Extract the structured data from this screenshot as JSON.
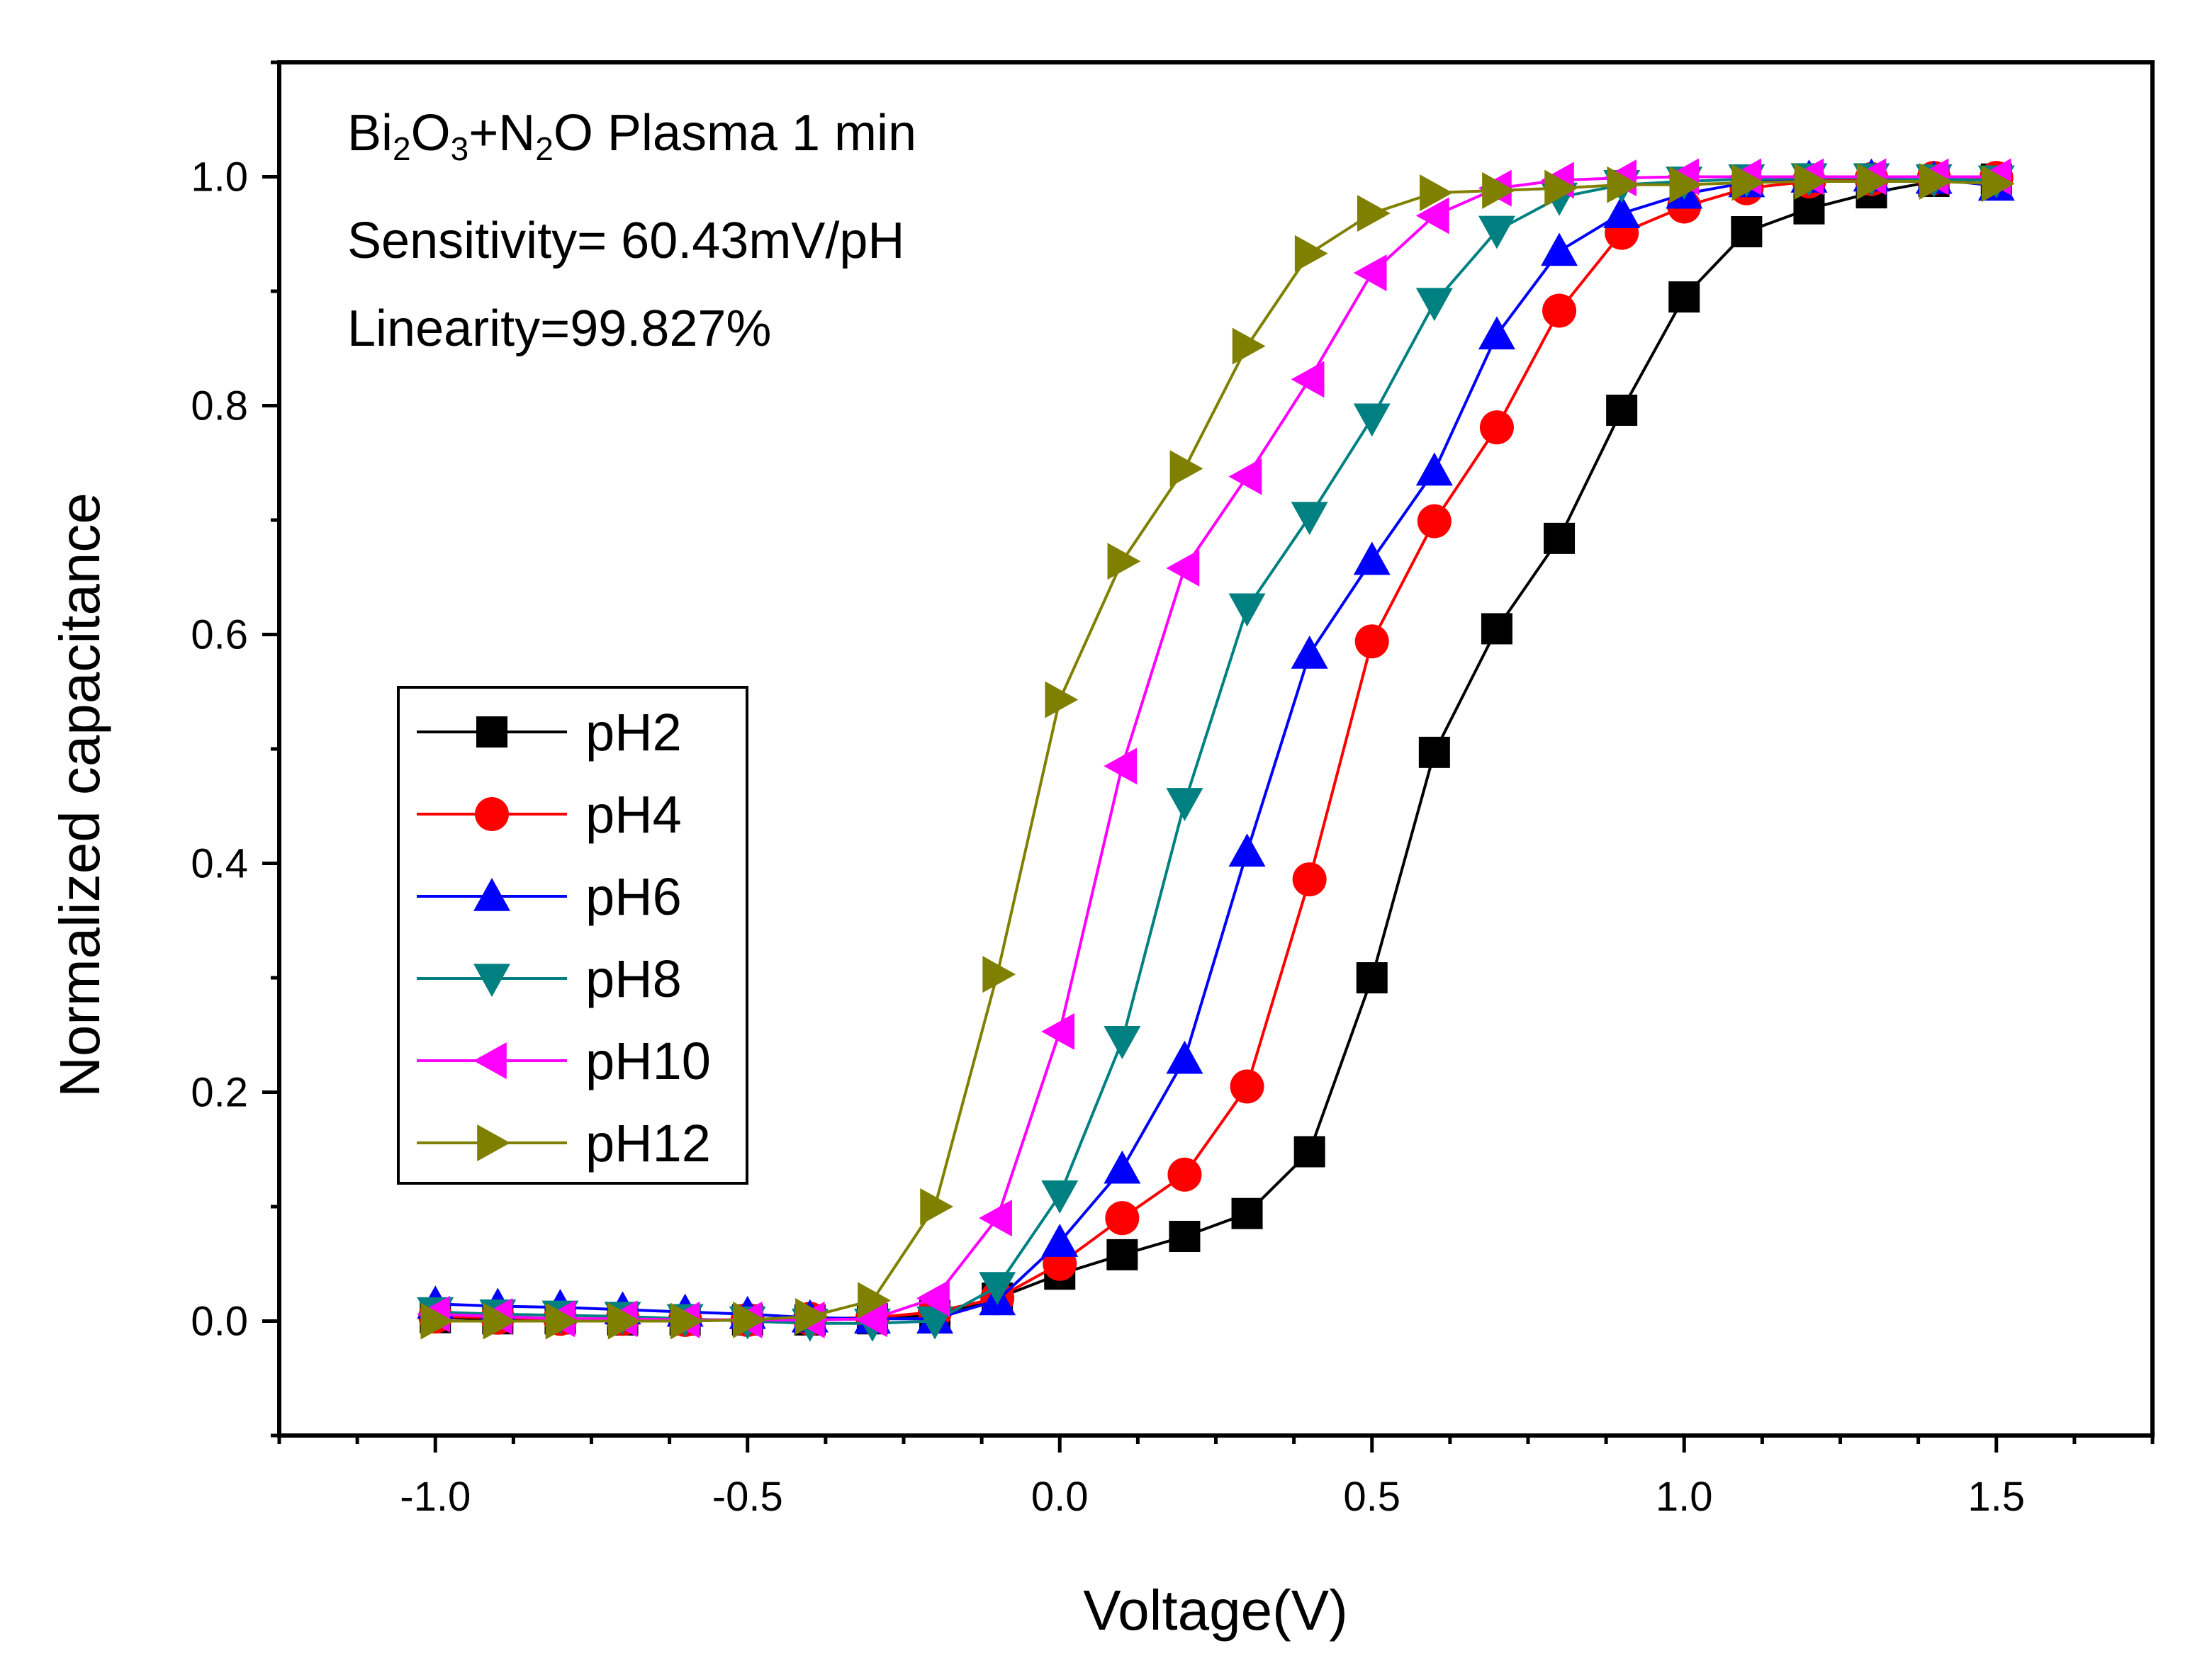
{
  "chart_data": {
    "type": "line",
    "title": "",
    "xlabel": "Voltage(V)",
    "ylabel": "Normalized capacitance",
    "xlim": [
      -1.25,
      1.75
    ],
    "ylim": [
      -0.1,
      1.1
    ],
    "xticks": [
      -1.0,
      -0.5,
      0.0,
      0.5,
      1.0,
      1.5
    ],
    "xtick_labels": [
      "-1.0",
      "-0.5",
      "0.0",
      "0.5",
      "1.0",
      "1.5"
    ],
    "yticks": [
      0.0,
      0.2,
      0.4,
      0.6,
      0.8,
      1.0
    ],
    "ytick_labels": [
      "0.0",
      "0.2",
      "0.4",
      "0.6",
      "0.8",
      "1.0"
    ],
    "grid": false,
    "legend_position": "left-middle",
    "annotation": {
      "line1_parts": [
        "Bi",
        "2",
        "O",
        "3",
        "+N",
        "2",
        "O Plasma 1 min"
      ],
      "line2": "Sensitivity= 60.43mV/pH",
      "line3": "Linearity=99.827%"
    },
    "x": [
      -1.0,
      -0.9,
      -0.8,
      -0.7,
      -0.6,
      -0.5,
      -0.4,
      -0.3,
      -0.2,
      -0.1,
      0.0,
      0.1,
      0.2,
      0.3,
      0.4,
      0.5,
      0.6,
      0.7,
      0.8,
      0.9,
      1.0,
      1.1,
      1.2,
      1.3,
      1.4,
      1.5
    ],
    "series": [
      {
        "name": "pH2",
        "color": "#000000",
        "marker": "square",
        "values": [
          0.003,
          0.002,
          0.002,
          0.001,
          0.001,
          0.001,
          0.001,
          0.002,
          0.005,
          0.02,
          0.041,
          0.058,
          0.074,
          0.094,
          0.148,
          0.3,
          0.497,
          0.605,
          0.684,
          0.796,
          0.895,
          0.952,
          0.972,
          0.986,
          0.996,
          0.998
        ]
      },
      {
        "name": "pH4",
        "color": "#ff0000",
        "marker": "circle",
        "values": [
          0.004,
          0.003,
          0.002,
          0.002,
          0.001,
          0.001,
          0.002,
          0.003,
          0.008,
          0.02,
          0.05,
          0.09,
          0.128,
          0.205,
          0.386,
          0.594,
          0.699,
          0.781,
          0.883,
          0.951,
          0.974,
          0.99,
          0.996,
          0.998,
          0.999,
          0.999
        ]
      },
      {
        "name": "pH6",
        "color": "#0000ff",
        "marker": "triangle-up",
        "values": [
          0.015,
          0.013,
          0.012,
          0.01,
          0.008,
          0.006,
          0.003,
          0.002,
          0.002,
          0.018,
          0.069,
          0.133,
          0.229,
          0.41,
          0.583,
          0.665,
          0.743,
          0.862,
          0.935,
          0.968,
          0.985,
          0.995,
          0.999,
          1.0,
          0.998,
          0.992
        ]
      },
      {
        "name": "pH8",
        "color": "#008080",
        "marker": "triangle-down",
        "values": [
          0.008,
          0.006,
          0.005,
          0.004,
          0.002,
          0.0,
          -0.002,
          -0.002,
          0.0,
          0.03,
          0.11,
          0.245,
          0.453,
          0.623,
          0.703,
          0.789,
          0.89,
          0.953,
          0.982,
          0.993,
          0.996,
          0.998,
          0.999,
          0.999,
          0.998,
          0.997
        ]
      },
      {
        "name": "pH10",
        "color": "#ff00ff",
        "marker": "triangle-left",
        "values": [
          0.006,
          0.004,
          0.002,
          0.002,
          0.001,
          0.001,
          0.001,
          0.002,
          0.02,
          0.09,
          0.253,
          0.485,
          0.658,
          0.738,
          0.823,
          0.916,
          0.966,
          0.99,
          0.997,
          0.999,
          1.0,
          1.0,
          1.0,
          1.0,
          1.0,
          1.0
        ]
      },
      {
        "name": "pH12",
        "color": "#808000",
        "marker": "triangle-right",
        "values": [
          0.0,
          0.0,
          0.0,
          0.0,
          0.0,
          0.001,
          0.004,
          0.018,
          0.1,
          0.303,
          0.543,
          0.664,
          0.745,
          0.852,
          0.933,
          0.968,
          0.986,
          0.988,
          0.99,
          0.993,
          0.993,
          0.995,
          0.996,
          0.996,
          0.996,
          0.994
        ]
      }
    ]
  }
}
